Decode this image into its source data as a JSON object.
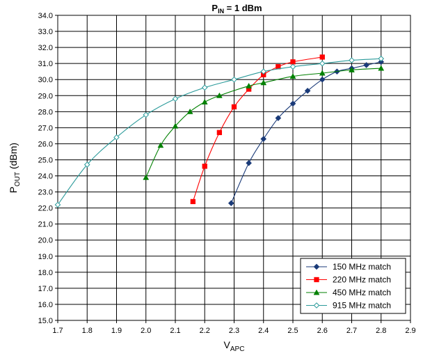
{
  "chart_data": {
    "type": "line",
    "title_main": "P",
    "title_sub": "IN",
    "title_rest": " = 1 dBm",
    "xlabel_main": "V",
    "xlabel_sub": "APC",
    "ylabel_main": "P",
    "ylabel_sub": "OUT",
    "ylabel_rest": " (dBm)",
    "xlim": [
      1.7,
      2.9
    ],
    "ylim": [
      15.0,
      34.0
    ],
    "x_ticks": [
      "1.7",
      "1.8",
      "1.9",
      "2.0",
      "2.1",
      "2.2",
      "2.3",
      "2.4",
      "2.5",
      "2.6",
      "2.7",
      "2.8",
      "2.9"
    ],
    "y_ticks": [
      "15.0",
      "16.0",
      "17.0",
      "18.0",
      "19.0",
      "20.0",
      "21.0",
      "22.0",
      "23.0",
      "24.0",
      "25.0",
      "26.0",
      "27.0",
      "28.0",
      "29.0",
      "30.0",
      "31.0",
      "32.0",
      "33.0",
      "34.0"
    ],
    "grid": true,
    "legend_position": "bottom-right",
    "series": [
      {
        "name": "150 MHz match",
        "color": "#1a3a78",
        "marker": "diamond-filled",
        "x": [
          2.29,
          2.35,
          2.4,
          2.45,
          2.5,
          2.55,
          2.6,
          2.65,
          2.7,
          2.75,
          2.8
        ],
        "y": [
          22.3,
          24.8,
          26.3,
          27.6,
          28.5,
          29.3,
          30.0,
          30.5,
          30.7,
          30.9,
          31.1
        ]
      },
      {
        "name": "220 MHz match",
        "color": "#ff0000",
        "marker": "square-filled",
        "x": [
          2.16,
          2.2,
          2.25,
          2.3,
          2.35,
          2.4,
          2.45,
          2.5,
          2.6
        ],
        "y": [
          22.4,
          24.6,
          26.7,
          28.3,
          29.4,
          30.3,
          30.8,
          31.1,
          31.4
        ]
      },
      {
        "name": "450 MHz match",
        "color": "#008000",
        "marker": "triangle-filled",
        "x": [
          2.0,
          2.05,
          2.1,
          2.15,
          2.2,
          2.25,
          2.35,
          2.4,
          2.5,
          2.6,
          2.7,
          2.8
        ],
        "y": [
          23.9,
          25.9,
          27.1,
          28.0,
          28.6,
          29.0,
          29.6,
          29.8,
          30.2,
          30.4,
          30.6,
          30.7
        ]
      },
      {
        "name": "915 MHz match",
        "color": "#2a9a9a",
        "marker": "diamond-open",
        "x": [
          1.7,
          1.8,
          1.9,
          2.0,
          2.1,
          2.2,
          2.3,
          2.4,
          2.5,
          2.6,
          2.7,
          2.8
        ],
        "y": [
          22.2,
          24.7,
          26.4,
          27.8,
          28.8,
          29.5,
          30.0,
          30.5,
          30.8,
          31.0,
          31.2,
          31.3
        ]
      }
    ]
  }
}
